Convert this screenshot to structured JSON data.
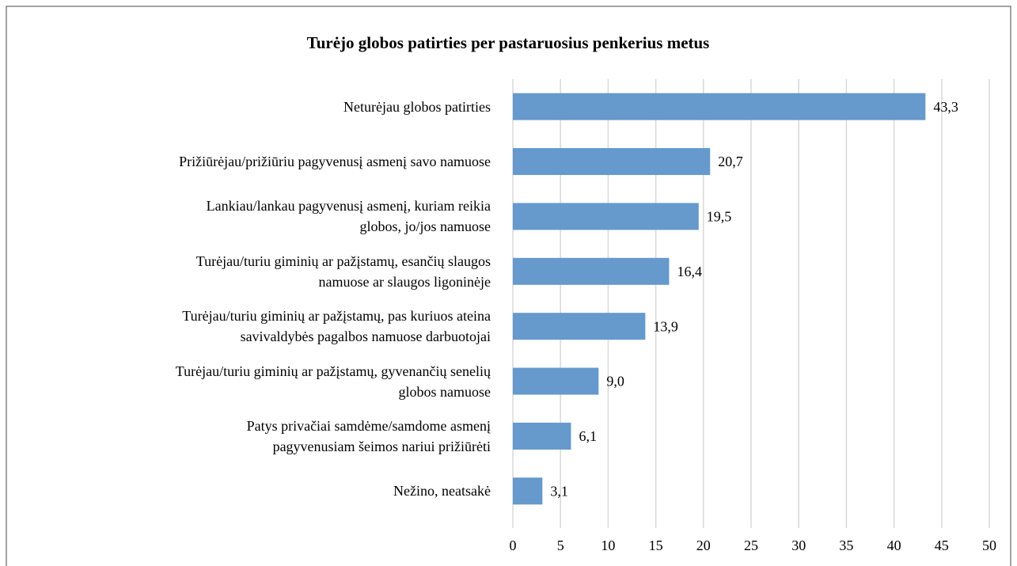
{
  "chart_data": {
    "type": "barh",
    "title": "Turėjo globos patirties per pastaruosius penkerius metus",
    "categories": [
      "Neturėjau globos patirties",
      "Prižiūrėjau/prižiūriu pagyvenusį asmenį savo namuose",
      "Lankiau/lankau pagyvenusį asmenį, kuriam reikia\nglobos, jo/jos namuose",
      "Turėjau/turiu giminių ar pažįstamų, esančių slaugos\nnamuose ar slaugos ligoninėje",
      "Turėjau/turiu giminių ar pažįstamų, pas kuriuos ateina\nsavivaldybės pagalbos namuose darbuotojai",
      "Turėjau/turiu giminių ar pažįstamų, gyvenančių senelių\nglobos namuose",
      "Patys privačiai samdėme/samdome asmenį\npagyvenusiam šeimos nariui prižiūrėti",
      "Nežino, neatsakė"
    ],
    "values": [
      43.3,
      20.7,
      19.5,
      16.4,
      13.9,
      9.0,
      6.1,
      3.1
    ],
    "value_labels": [
      "43,3",
      "20,7",
      "19,5",
      "16,4",
      "13,9",
      "9,0",
      "6,1",
      "3,1"
    ],
    "color": "#6699cc",
    "xlim": [
      0,
      50
    ],
    "xticks": [
      0,
      5,
      10,
      15,
      20,
      25,
      30,
      35,
      40,
      45,
      50
    ],
    "grid": true
  }
}
